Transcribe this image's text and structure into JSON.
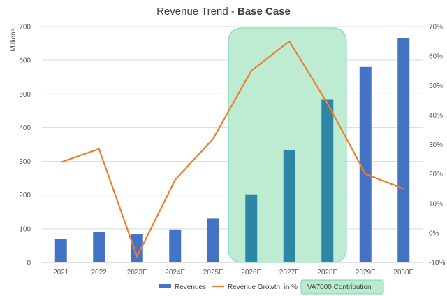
{
  "chart_data": {
    "type": "bar",
    "title": "Revenue Trend - ",
    "title_emphasis": "Base Case",
    "ylabel": "Millions",
    "categories": [
      "2021",
      "2022",
      "2023E",
      "2024E",
      "2025E",
      "2026E",
      "2027E",
      "2028E",
      "2029E",
      "2030E"
    ],
    "series": [
      {
        "name": "Revenues",
        "type": "bar",
        "axis": "left",
        "color": "#4472C4",
        "highlight_color": "#2E86A6",
        "values": [
          70,
          90,
          83,
          98,
          130,
          202,
          333,
          483,
          580,
          665
        ]
      },
      {
        "name": "Revenue Growth, in %",
        "type": "line",
        "axis": "right",
        "color": "#ED7D31",
        "values": [
          24,
          28.5,
          -8,
          18,
          32,
          55,
          65,
          44,
          20,
          15
        ]
      }
    ],
    "highlight": {
      "label": "VA7000 Contribution",
      "categories": [
        "2026E",
        "2027E",
        "2028E"
      ],
      "color": "#B9EBD1",
      "border_color": "#7FD3A8"
    },
    "ylim": [
      0,
      700
    ],
    "yticks": [
      0,
      100,
      200,
      300,
      400,
      500,
      600,
      700
    ],
    "y2lim": [
      -10,
      70
    ],
    "y2ticks": [
      "-10%",
      "0%",
      "10%",
      "20%",
      "30%",
      "40%",
      "50%",
      "60%",
      "70%"
    ],
    "y2tick_values": [
      -10,
      0,
      10,
      20,
      30,
      40,
      50,
      60,
      70
    ],
    "grid": true,
    "legend_position": "bottom"
  }
}
